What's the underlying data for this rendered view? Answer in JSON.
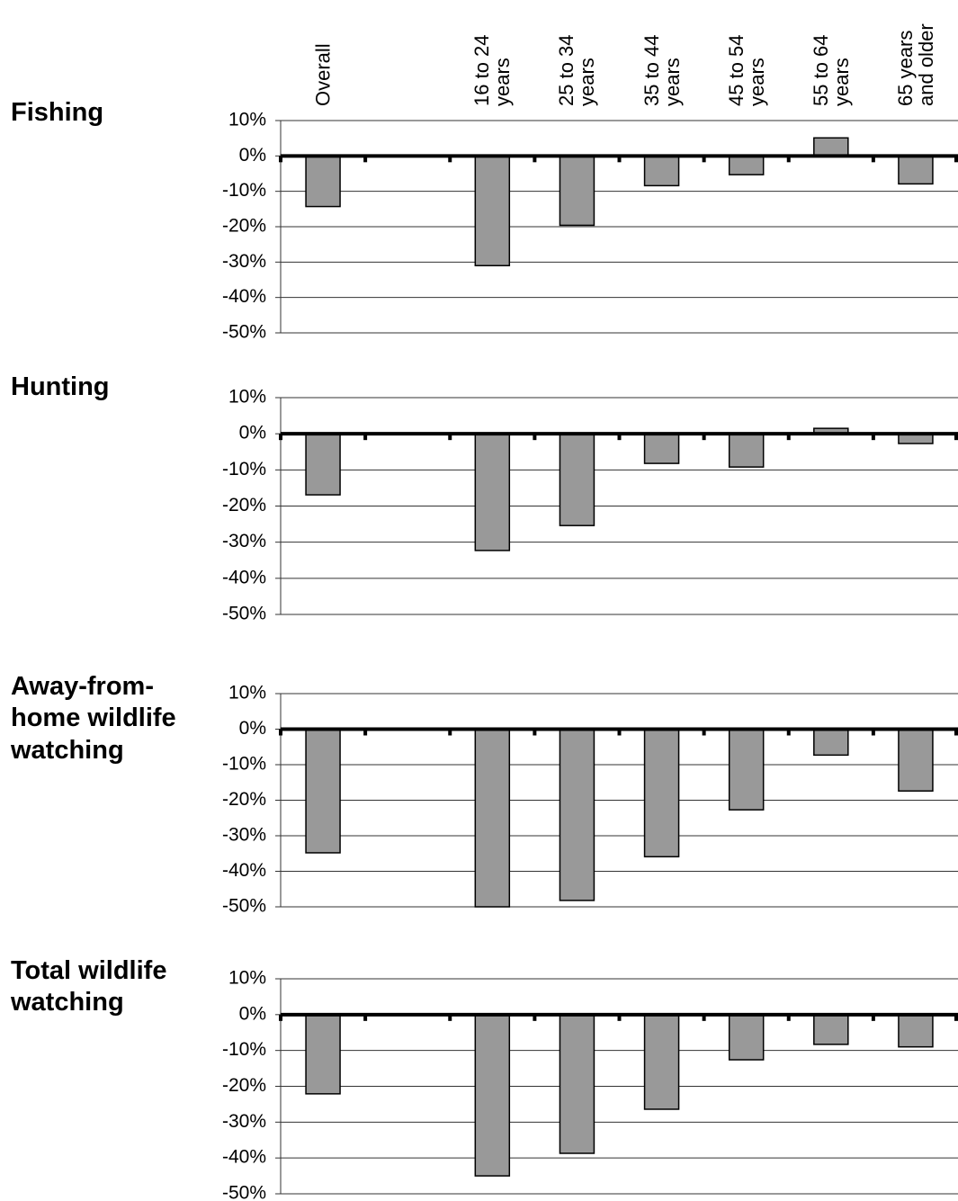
{
  "chart_data": {
    "type": "bar",
    "color": "#999999",
    "categories": [
      "Overall",
      null,
      "16 to 24\nyears",
      "25 to 34\nyears",
      "35 to 44\nyears",
      "45 to 54\nyears",
      "55 to 64\nyears",
      "65 years\nand older"
    ],
    "ylim": [
      -50,
      10
    ],
    "yticks": [
      {
        "value": 10,
        "label": "10%"
      },
      {
        "value": 0,
        "label": "0%"
      },
      {
        "value": -10,
        "label": "-10%"
      },
      {
        "value": -20,
        "label": "-20%"
      },
      {
        "value": -30,
        "label": "-30%"
      },
      {
        "value": -40,
        "label": "-40%"
      },
      {
        "value": -50,
        "label": "-50%"
      }
    ],
    "grid": true,
    "panels": [
      {
        "title": "Fishing",
        "values": [
          -14.3,
          null,
          -31,
          -19.6,
          -8.4,
          -5.3,
          5.1,
          -7.9
        ]
      },
      {
        "title": "Hunting",
        "values": [
          -16.9,
          null,
          -32.3,
          -25.4,
          -8.2,
          -9.2,
          1.5,
          -2.7
        ]
      },
      {
        "title": "Away-from-\nhome wildlife\nwatching",
        "values": [
          -34.8,
          null,
          -50,
          -48.2,
          -35.9,
          -22.7,
          -7.3,
          -17.4
        ]
      },
      {
        "title": "Total wildlife\nwatching",
        "values": [
          -22.1,
          null,
          -45,
          -38.7,
          -26.4,
          -12.6,
          -8.3,
          -9.0
        ]
      }
    ]
  }
}
